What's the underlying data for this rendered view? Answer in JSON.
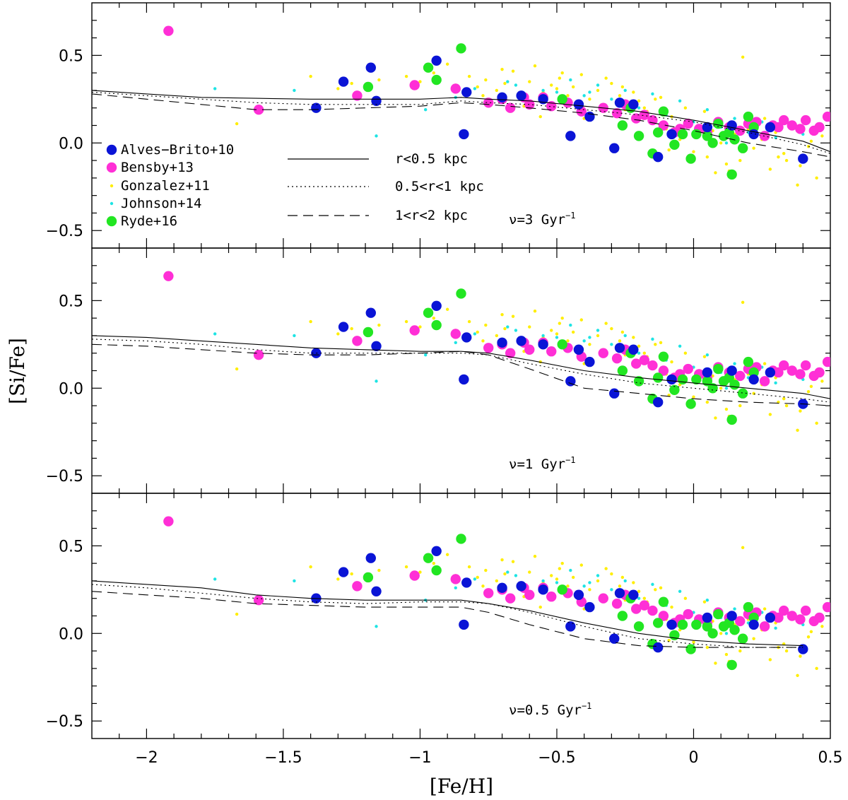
{
  "chart_data": {
    "type": "scatter",
    "title": "",
    "xlabel": "[Fe/H]",
    "ylabel": "[Si/Fe]",
    "xlim": [
      -2.2,
      0.5
    ],
    "ylim": [
      -0.6,
      0.8
    ],
    "x_ticks": [
      -2,
      -1.5,
      -1,
      -0.5,
      0,
      0.5
    ],
    "x_tick_labels": [
      "−2",
      "−1.5",
      "−1",
      "−0.5",
      "0",
      "0.5"
    ],
    "y_ticks": [
      -0.5,
      0,
      0.5
    ],
    "y_tick_labels": [
      "−0.5",
      "0.0",
      "0.5"
    ],
    "legend_location": "lower-left of top panel",
    "observations": [
      {
        "name": "Alves−Brito+10",
        "color": "#0a14d6",
        "marker": "large-dot",
        "x": [
          -1.28,
          -1.18,
          -1.16,
          -0.94,
          -0.83,
          -0.84,
          -0.7,
          -0.63,
          -0.55,
          -0.45,
          -0.42,
          -0.38,
          -0.29,
          -0.27,
          -0.22,
          -0.13,
          -0.08,
          0.05,
          0.14,
          0.22,
          0.28,
          0.4,
          -1.38
        ],
        "y": [
          0.35,
          0.43,
          0.24,
          0.47,
          0.29,
          0.05,
          0.26,
          0.27,
          0.25,
          0.04,
          0.22,
          0.15,
          -0.03,
          0.23,
          0.22,
          -0.08,
          0.05,
          0.09,
          0.1,
          0.05,
          0.09,
          -0.09,
          0.2
        ]
      },
      {
        "name": "Bensby+13",
        "color": "#ff2fd6",
        "marker": "large-dot",
        "x": [
          -1.92,
          -1.59,
          -1.23,
          -1.02,
          -0.87,
          -0.75,
          -0.7,
          -0.67,
          -0.62,
          -0.6,
          -0.55,
          -0.52,
          -0.46,
          -0.41,
          -0.33,
          -0.28,
          -0.25,
          -0.21,
          -0.18,
          -0.15,
          -0.11,
          -0.07,
          -0.05,
          -0.02,
          0.02,
          0.05,
          0.09,
          0.13,
          0.17,
          0.2,
          0.23,
          0.26,
          0.29,
          0.31,
          0.33,
          0.36,
          0.39,
          0.41,
          0.44,
          0.46,
          0.49
        ],
        "y": [
          0.64,
          0.19,
          0.27,
          0.33,
          0.31,
          0.23,
          0.25,
          0.2,
          0.26,
          0.22,
          0.26,
          0.21,
          0.23,
          0.18,
          0.2,
          0.17,
          0.22,
          0.14,
          0.16,
          0.13,
          0.1,
          0.06,
          0.08,
          0.11,
          0.08,
          0.06,
          0.12,
          0.09,
          0.07,
          0.11,
          0.12,
          0.04,
          0.1,
          0.09,
          0.13,
          0.1,
          0.08,
          0.13,
          0.07,
          0.09,
          0.15
        ]
      },
      {
        "name": "Gonzalez+11",
        "color": "#ffee00",
        "marker": "small-dot",
        "x": [
          -1.67,
          -1.4,
          -1.3,
          -1.25,
          -1.15,
          -1.05,
          -1.0,
          -0.95,
          -0.9,
          -0.87,
          -0.82,
          -0.79,
          -0.76,
          -0.72,
          -0.69,
          -0.66,
          -0.63,
          -0.6,
          -0.58,
          -0.55,
          -0.52,
          -0.49,
          -0.46,
          -0.44,
          -0.41,
          -0.38,
          -0.35,
          -0.33,
          -0.3,
          -0.27,
          -0.25,
          -0.22,
          -0.2,
          -0.17,
          -0.15,
          -0.12,
          -0.1,
          -0.08,
          -0.05,
          -0.03,
          0.0,
          0.02,
          0.05,
          0.07,
          0.1,
          0.12,
          0.15,
          0.17,
          0.2,
          0.22,
          0.25,
          0.28,
          0.3,
          0.33,
          0.36,
          0.39,
          0.42,
          0.45,
          0.47,
          -0.7,
          -0.62,
          -0.5,
          -0.4,
          -0.32,
          -0.18,
          -0.09,
          0.04,
          0.13,
          0.26,
          0.34,
          0.43,
          -0.56,
          -0.26,
          0.08,
          0.31,
          -0.77,
          -0.48,
          -0.14,
          0.18,
          0.38
        ],
        "y": [
          0.11,
          0.38,
          0.31,
          0.34,
          0.36,
          0.38,
          0.35,
          0.4,
          0.45,
          0.33,
          0.38,
          0.32,
          0.36,
          0.3,
          0.34,
          0.41,
          0.28,
          0.35,
          0.44,
          0.29,
          0.33,
          0.37,
          0.27,
          0.32,
          0.39,
          0.25,
          0.3,
          0.22,
          0.34,
          0.27,
          0.19,
          0.29,
          0.24,
          0.18,
          0.12,
          0.26,
          0.08,
          0.15,
          0.02,
          0.2,
          -0.05,
          0.1,
          -0.08,
          0.07,
          0.0,
          -0.12,
          0.05,
          -0.1,
          0.08,
          -0.03,
          0.02,
          -0.15,
          0.06,
          -0.06,
          0.1,
          -0.13,
          -0.02,
          -0.2,
          0.04,
          0.42,
          0.21,
          0.31,
          0.14,
          0.37,
          0.2,
          -0.04,
          0.18,
          -0.16,
          0.14,
          -0.1,
          0.01,
          0.15,
          0.32,
          -0.17,
          -0.08,
          0.27,
          0.4,
          0.25,
          0.49,
          -0.24
        ],
        "note": "dense background cloud"
      },
      {
        "name": "Johnson+14",
        "color": "#1ee4e4",
        "marker": "small-dot",
        "x": [
          -1.75,
          -1.46,
          -1.16,
          -0.98,
          -0.87,
          -0.8,
          -0.75,
          -0.7,
          -0.65,
          -0.6,
          -0.55,
          -0.5,
          -0.45,
          -0.4,
          -0.35,
          -0.3,
          -0.25,
          -0.2,
          -0.15,
          -0.1,
          -0.05,
          0.0,
          0.05,
          0.1,
          0.15,
          0.2,
          0.25,
          0.3,
          0.35,
          0.4,
          -0.68,
          -0.52,
          -0.38,
          -0.22,
          -0.05,
          0.12,
          0.28
        ],
        "y": [
          0.31,
          0.3,
          0.04,
          0.19,
          0.26,
          0.31,
          0.21,
          0.28,
          0.33,
          0.24,
          0.3,
          0.29,
          0.36,
          0.27,
          0.33,
          0.25,
          0.3,
          0.2,
          0.28,
          0.16,
          0.24,
          0.12,
          0.19,
          0.09,
          0.14,
          0.06,
          0.12,
          0.03,
          0.1,
          0.05,
          0.35,
          0.22,
          0.29,
          0.15,
          0.08,
          0.0,
          0.11
        ]
      },
      {
        "name": "Ryde+16",
        "color": "#22e622",
        "marker": "large-dot",
        "x": [
          -1.19,
          -0.97,
          -0.94,
          -0.85,
          -0.48,
          -0.26,
          -0.23,
          -0.2,
          -0.15,
          -0.13,
          -0.11,
          -0.07,
          -0.04,
          -0.01,
          0.01,
          0.05,
          0.07,
          0.09,
          0.11,
          0.13,
          0.15,
          0.18,
          0.2,
          0.22,
          0.14
        ],
        "y": [
          0.32,
          0.43,
          0.36,
          0.54,
          0.25,
          0.1,
          0.2,
          0.04,
          -0.06,
          0.06,
          0.18,
          -0.01,
          0.05,
          -0.09,
          0.05,
          0.04,
          0.0,
          0.11,
          0.04,
          0.06,
          0.02,
          -0.03,
          0.15,
          0.09,
          -0.18
        ]
      }
    ],
    "models": [
      {
        "name": "r<0.5 kpc",
        "style": "solid"
      },
      {
        "name": "0.5<r<1 kpc",
        "style": "dotted"
      },
      {
        "name": "1<r<2 kpc",
        "style": "dashed"
      }
    ],
    "panels": [
      {
        "label_prefix": "ν=3 Gyr",
        "label_exp": "−1",
        "curves": {
          "x": [
            -2.2,
            -2.0,
            -1.8,
            -1.6,
            -1.4,
            -1.2,
            -1.0,
            -0.85,
            -0.75,
            -0.6,
            -0.4,
            -0.2,
            0.0,
            0.2,
            0.4,
            0.5
          ],
          "r<0.5 kpc": [
            0.3,
            0.28,
            0.26,
            0.255,
            0.25,
            0.25,
            0.25,
            0.26,
            0.25,
            0.24,
            0.21,
            0.18,
            0.13,
            0.07,
            0.01,
            -0.05
          ],
          "0.5<r<1 kpc": [
            0.29,
            0.27,
            0.25,
            0.23,
            0.22,
            0.22,
            0.22,
            0.24,
            0.23,
            0.22,
            0.19,
            0.16,
            0.12,
            0.06,
            -0.01,
            -0.06
          ],
          "1<r<2 kpc": [
            0.28,
            0.25,
            0.22,
            0.19,
            0.19,
            0.2,
            0.21,
            0.23,
            0.22,
            0.2,
            0.17,
            0.13,
            0.07,
            0.0,
            -0.05,
            -0.08
          ]
        }
      },
      {
        "label_prefix": "ν=1 Gyr",
        "label_exp": "−1",
        "curves": {
          "x": [
            -2.2,
            -2.0,
            -1.8,
            -1.6,
            -1.4,
            -1.2,
            -1.0,
            -0.85,
            -0.75,
            -0.6,
            -0.4,
            -0.2,
            0.0,
            0.2,
            0.4,
            0.5
          ],
          "r<0.5 kpc": [
            0.3,
            0.29,
            0.27,
            0.25,
            0.23,
            0.22,
            0.21,
            0.21,
            0.2,
            0.16,
            0.1,
            0.06,
            0.03,
            0.0,
            -0.03,
            -0.06
          ],
          "0.5<r<1 kpc": [
            0.28,
            0.27,
            0.25,
            0.22,
            0.2,
            0.2,
            0.2,
            0.2,
            0.19,
            0.14,
            0.08,
            0.03,
            0.0,
            -0.03,
            -0.06,
            -0.08
          ],
          "1<r<2 kpc": [
            0.25,
            0.24,
            0.22,
            0.2,
            0.19,
            0.19,
            0.2,
            0.21,
            0.19,
            0.11,
            0.0,
            -0.03,
            -0.06,
            -0.08,
            -0.09,
            -0.1
          ]
        }
      },
      {
        "label_prefix": "ν=0.5 Gyr",
        "label_exp": "−1",
        "curves": {
          "x": [
            -2.2,
            -2.0,
            -1.8,
            -1.6,
            -1.4,
            -1.2,
            -1.0,
            -0.85,
            -0.75,
            -0.6,
            -0.4,
            -0.2,
            0.0,
            0.2,
            0.4
          ],
          "r<0.5 kpc": [
            0.3,
            0.28,
            0.26,
            0.22,
            0.2,
            0.19,
            0.19,
            0.19,
            0.17,
            0.13,
            0.06,
            0.0,
            -0.04,
            -0.06,
            -0.07
          ],
          "0.5<r<1 kpc": [
            0.28,
            0.26,
            0.23,
            0.2,
            0.18,
            0.17,
            0.18,
            0.18,
            0.17,
            0.12,
            0.04,
            -0.03,
            -0.06,
            -0.08,
            -0.08
          ],
          "1<r<2 kpc": [
            0.24,
            0.22,
            0.2,
            0.17,
            0.16,
            0.15,
            0.15,
            0.15,
            0.12,
            0.05,
            -0.03,
            -0.07,
            -0.08,
            -0.08,
            -0.08
          ]
        }
      }
    ]
  }
}
